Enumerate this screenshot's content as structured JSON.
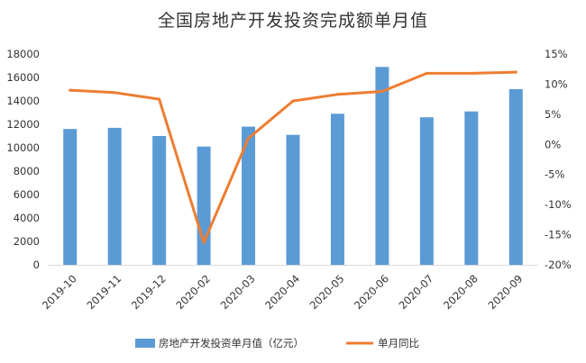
{
  "chart_data": {
    "type": "bar+line",
    "title": "全国房地产开发投资完成额单月值",
    "categories": [
      "2019-10",
      "2019-11",
      "2019-12",
      "2020-02",
      "2020-03",
      "2020-04",
      "2020-05",
      "2020-06",
      "2020-07",
      "2020-08",
      "2020-09"
    ],
    "series": [
      {
        "name": "房地产开发投资单月值（亿元）",
        "type": "bar",
        "axis": "left",
        "color": "#5B9BD5",
        "values": [
          11600,
          11700,
          11000,
          10100,
          11800,
          11100,
          12900,
          16900,
          12600,
          13100,
          15000
        ]
      },
      {
        "name": "单月同比",
        "type": "line",
        "axis": "right",
        "color": "#ED7D31",
        "values": [
          9.0,
          8.6,
          7.5,
          -16.3,
          1.0,
          7.2,
          8.3,
          8.8,
          11.8,
          11.8,
          12.0
        ]
      }
    ],
    "y_left": {
      "min": 0,
      "max": 18000,
      "step": 2000,
      "ticks": [
        "0",
        "2000",
        "4000",
        "6000",
        "8000",
        "10000",
        "12000",
        "14000",
        "16000",
        "18000"
      ]
    },
    "y_right": {
      "min": -20,
      "max": 15,
      "step": 5,
      "ticks": [
        "-20%",
        "-15%",
        "-10%",
        "-5%",
        "0%",
        "5%",
        "10%",
        "15%"
      ]
    },
    "grid": false,
    "legend": "bottom"
  }
}
